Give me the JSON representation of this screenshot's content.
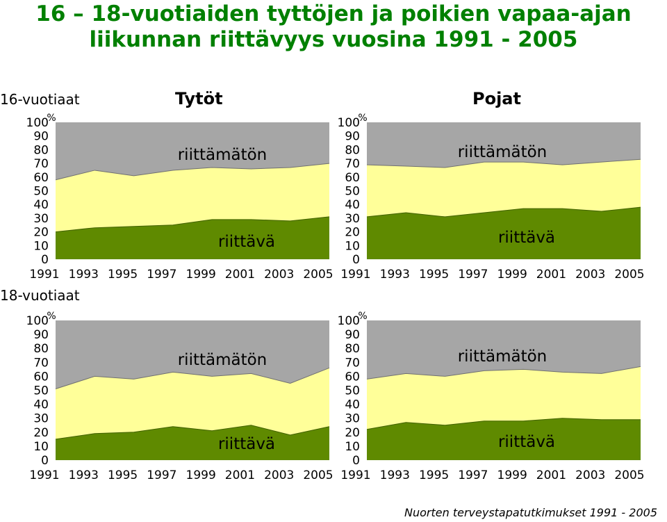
{
  "title_line1": "16 – 18-vuotiaiden tyttöjen ja poikien vapaa-ajan",
  "title_line2": "liikunnan riittävyys vuosina 1991 - 2005",
  "row_labels": {
    "age16": "16-vuotiaat",
    "age18": "18-vuotiaat"
  },
  "column_headers": {
    "girls": "Tytöt",
    "boys": "Pojat"
  },
  "source": "Nuorten terveystapatutkimukset 1991 - 2005",
  "colors": {
    "riittava": "#5f8a00",
    "riittamaton": "#ffff99",
    "top": "#a6a6a6"
  },
  "chart_data": [
    {
      "type": "area",
      "id": "girls16",
      "stacked": true,
      "x": [
        "1991",
        "1993",
        "1995",
        "1997",
        "1999",
        "2001",
        "2003",
        "2005"
      ],
      "series": [
        {
          "name": "riittävä",
          "values": [
            20,
            23,
            24,
            25,
            29,
            29,
            28,
            31
          ]
        },
        {
          "name": "riittämätön",
          "values": [
            38,
            42,
            37,
            40,
            38,
            37,
            39,
            39
          ]
        }
      ],
      "ylabel": "%",
      "ylim": [
        0,
        100
      ],
      "yticks": [
        0,
        10,
        20,
        30,
        40,
        50,
        60,
        70,
        80,
        90,
        100
      ]
    },
    {
      "type": "area",
      "id": "boys16",
      "stacked": true,
      "x": [
        "1991",
        "1993",
        "1995",
        "1997",
        "1999",
        "2001",
        "2003",
        "2005"
      ],
      "series": [
        {
          "name": "riittävä",
          "values": [
            31,
            34,
            31,
            34,
            37,
            37,
            35,
            38
          ]
        },
        {
          "name": "riittämätön",
          "values": [
            38,
            34,
            36,
            37,
            34,
            32,
            36,
            35
          ]
        }
      ],
      "ylabel": "%",
      "ylim": [
        0,
        100
      ],
      "yticks": [
        0,
        10,
        20,
        30,
        40,
        50,
        60,
        70,
        80,
        90,
        100
      ]
    },
    {
      "type": "area",
      "id": "girls18",
      "stacked": true,
      "x": [
        "1991",
        "1993",
        "1995",
        "1997",
        "1999",
        "2001",
        "2003",
        "2005"
      ],
      "series": [
        {
          "name": "riittävä",
          "values": [
            15,
            19,
            20,
            24,
            21,
            25,
            18,
            24
          ]
        },
        {
          "name": "riittämätön",
          "values": [
            36,
            41,
            38,
            39,
            39,
            37,
            37,
            42
          ]
        }
      ],
      "ylabel": "%",
      "ylim": [
        0,
        100
      ],
      "yticks": [
        0,
        10,
        20,
        30,
        40,
        50,
        60,
        70,
        80,
        90,
        100
      ]
    },
    {
      "type": "area",
      "id": "boys18",
      "stacked": true,
      "x": [
        "1991",
        "1993",
        "1995",
        "1997",
        "1999",
        "2001",
        "2003",
        "2005"
      ],
      "series": [
        {
          "name": "riittävä",
          "values": [
            22,
            27,
            25,
            28,
            28,
            30,
            29,
            29
          ]
        },
        {
          "name": "riittämätön",
          "values": [
            36,
            35,
            35,
            36,
            37,
            33,
            33,
            38
          ]
        }
      ],
      "ylabel": "%",
      "ylim": [
        0,
        100
      ],
      "yticks": [
        0,
        10,
        20,
        30,
        40,
        50,
        60,
        70,
        80,
        90,
        100
      ]
    }
  ]
}
